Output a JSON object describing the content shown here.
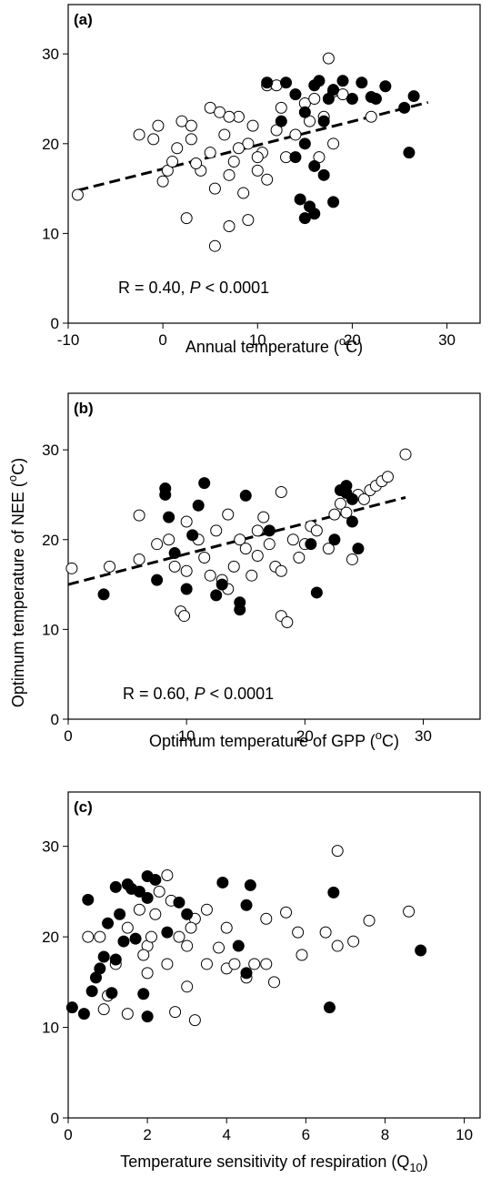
{
  "chart_data": [
    {
      "type": "scatter",
      "panel_label": "(a)",
      "xlabel": {
        "text": "Annual temperature (",
        "sup": "o",
        "tail": "C)"
      },
      "annotation": {
        "text": "R = 0.40, ",
        "italic": "P",
        "tail": " < 0.0001"
      },
      "xlim": [
        -10,
        33.5
      ],
      "xticks": [
        -10,
        0,
        10,
        20,
        30
      ],
      "ylim": [
        0,
        35.5
      ],
      "yticks": [
        0,
        10,
        20,
        30
      ],
      "open_points": {
        "color": "#ffffff",
        "x": [
          -9,
          -2.5,
          -1,
          -0.5,
          0,
          0.5,
          1,
          1.5,
          2,
          2.5,
          3,
          3,
          4,
          5,
          5,
          5.5,
          5.5,
          6,
          6.5,
          7,
          7,
          7.5,
          8,
          8.5,
          9,
          9,
          9.5,
          10,
          10.5,
          11,
          11,
          12,
          12.5,
          13,
          14,
          15,
          15.5,
          16,
          16.5,
          17,
          17.5,
          18,
          18,
          19,
          22,
          12,
          3.5,
          7,
          8,
          10
        ],
        "y": [
          14.3,
          21,
          20.5,
          22,
          15.8,
          17,
          18,
          19.5,
          22.5,
          11.7,
          20.5,
          22,
          17,
          24,
          19,
          15,
          8.6,
          23.5,
          21,
          10.8,
          16.5,
          18,
          23,
          14.5,
          20,
          11.5,
          22,
          17,
          19,
          26.5,
          16,
          21.5,
          24,
          18.5,
          21,
          24.5,
          22.5,
          25,
          18.5,
          23,
          29.5,
          25.8,
          20,
          25.5,
          23,
          26.5,
          17.8,
          23,
          19.5,
          18.5
        ]
      },
      "filled_points": {
        "color": "#000000",
        "x": [
          11,
          13,
          14,
          14.5,
          15,
          15,
          15.5,
          16,
          16,
          16.5,
          17,
          17,
          17.5,
          18,
          18,
          19,
          20,
          21,
          22,
          22.5,
          23.5,
          25.5,
          26,
          26.5,
          15,
          14,
          16,
          12.5
        ],
        "y": [
          26.8,
          26.8,
          25.5,
          13.8,
          11.7,
          20,
          13,
          26.5,
          12.2,
          27,
          22.5,
          16.5,
          25,
          26,
          13.5,
          27,
          25,
          26.8,
          25.2,
          25,
          26.4,
          24,
          19,
          25.3,
          23.5,
          18.5,
          17.5,
          22.5
        ]
      },
      "trend_line": {
        "x": [
          -9,
          28
        ],
        "y": [
          14.8,
          24.6
        ]
      }
    },
    {
      "type": "scatter",
      "panel_label": "(b)",
      "xlabel": {
        "text": "Optimum temperature of GPP (",
        "sup": "o",
        "tail": "C)"
      },
      "ylabel": {
        "text": "Optimum temperature of NEE (",
        "sup": "o",
        "tail": "C)"
      },
      "annotation": {
        "text": "R = 0.60, ",
        "italic": "P",
        "tail": " < 0.0001"
      },
      "xlim": [
        0,
        34.8
      ],
      "xticks": [
        0,
        10,
        20,
        30
      ],
      "ylim": [
        0,
        36.3
      ],
      "yticks": [
        0,
        10,
        20,
        30
      ],
      "open_points": {
        "color": "#ffffff",
        "x": [
          0.3,
          3.5,
          6,
          6,
          7.5,
          8.5,
          9,
          9.5,
          9.8,
          10,
          10,
          11,
          11.5,
          12,
          12.5,
          13,
          13.5,
          13.5,
          14,
          14.5,
          15,
          15.5,
          16,
          16,
          16.5,
          17,
          17.5,
          18,
          18,
          18,
          18.5,
          19,
          19.5,
          20,
          20.5,
          21,
          22,
          22.5,
          23,
          23.5,
          24,
          24.5,
          25,
          25.5,
          26,
          26.5,
          27,
          28.5
        ],
        "y": [
          16.8,
          17,
          22.7,
          17.8,
          19.5,
          20,
          17,
          12,
          11.5,
          22,
          16.5,
          20,
          18,
          16,
          21,
          15.5,
          14.5,
          22.8,
          17,
          20,
          19,
          16,
          21,
          18.2,
          22.5,
          19.5,
          17,
          25.3,
          16.5,
          11.5,
          10.8,
          20,
          18,
          19.5,
          21.5,
          21,
          19,
          22.8,
          24,
          23,
          17.8,
          25,
          24.5,
          25.5,
          26,
          26.5,
          27,
          29.5
        ]
      },
      "filled_points": {
        "color": "#000000",
        "x": [
          3,
          7.5,
          8.2,
          8.2,
          8.5,
          9,
          10,
          10.5,
          11,
          11.5,
          12.5,
          13,
          14.5,
          14.5,
          15,
          17,
          21,
          20.5,
          22.5,
          23,
          23.5,
          23.5,
          24,
          24.5,
          24
        ],
        "y": [
          13.9,
          15.5,
          25.7,
          25,
          22.5,
          18.5,
          14.5,
          20.5,
          23.8,
          26.3,
          13.8,
          15,
          12.2,
          13,
          24.9,
          21,
          14.1,
          19.5,
          20,
          25.5,
          26,
          25.2,
          24.5,
          19,
          22
        ]
      },
      "trend_line": {
        "x": [
          0,
          28.5
        ],
        "y": [
          15,
          24.7
        ]
      }
    },
    {
      "type": "scatter",
      "panel_label": "(c)",
      "xlabel": {
        "text": "Temperature sensitivity of respiration (Q",
        "sub": "10",
        "tail": ")"
      },
      "xlim": [
        0,
        10.4
      ],
      "xticks": [
        0,
        2,
        4,
        6,
        8,
        10
      ],
      "ylim": [
        0,
        36
      ],
      "yticks": [
        0,
        10,
        20,
        30
      ],
      "open_points": {
        "color": "#ffffff",
        "x": [
          0.5,
          0.8,
          0.9,
          1,
          1.2,
          1.5,
          1.5,
          1.8,
          2,
          2,
          2.2,
          2.3,
          2.5,
          2.5,
          2.7,
          2.8,
          3,
          3,
          3.2,
          3.2,
          3.5,
          3.5,
          3.8,
          4,
          4,
          4.2,
          4.5,
          4.7,
          5,
          5,
          5.2,
          5.5,
          5.8,
          5.9,
          6.5,
          6.8,
          6.8,
          7.2,
          7.6,
          8.6,
          2.1,
          2.6,
          3.1,
          1.9
        ],
        "y": [
          20,
          20,
          12,
          13.5,
          17,
          11.5,
          21,
          23,
          16,
          19,
          22.5,
          25,
          17,
          26.8,
          11.7,
          20,
          14.5,
          19,
          10.8,
          22,
          17,
          23,
          18.8,
          16.5,
          21,
          17,
          15.5,
          17,
          22,
          17,
          15,
          22.7,
          20.5,
          18,
          20.5,
          19,
          29.5,
          19.5,
          21.8,
          22.8,
          20,
          24,
          21,
          18
        ]
      },
      "filled_points": {
        "color": "#000000",
        "x": [
          0.1,
          0.4,
          0.5,
          0.6,
          0.7,
          0.8,
          0.9,
          1,
          1.1,
          1.2,
          1.2,
          1.3,
          1.4,
          1.5,
          1.6,
          1.7,
          1.8,
          1.9,
          2,
          2,
          2,
          2.2,
          2.5,
          2.8,
          3,
          3.9,
          4.3,
          4.5,
          4.6,
          4.5,
          6.6,
          6.7,
          8.9
        ],
        "y": [
          12.2,
          11.5,
          24.1,
          14,
          15.5,
          16.5,
          17.8,
          21.5,
          13.8,
          17.5,
          25.5,
          22.5,
          19.5,
          25.8,
          25.3,
          19.8,
          25,
          13.7,
          24.3,
          11.2,
          26.7,
          26.3,
          20.5,
          23.8,
          22.5,
          26,
          19,
          23.5,
          25.7,
          16,
          12.2,
          24.9,
          18.5
        ]
      }
    }
  ]
}
